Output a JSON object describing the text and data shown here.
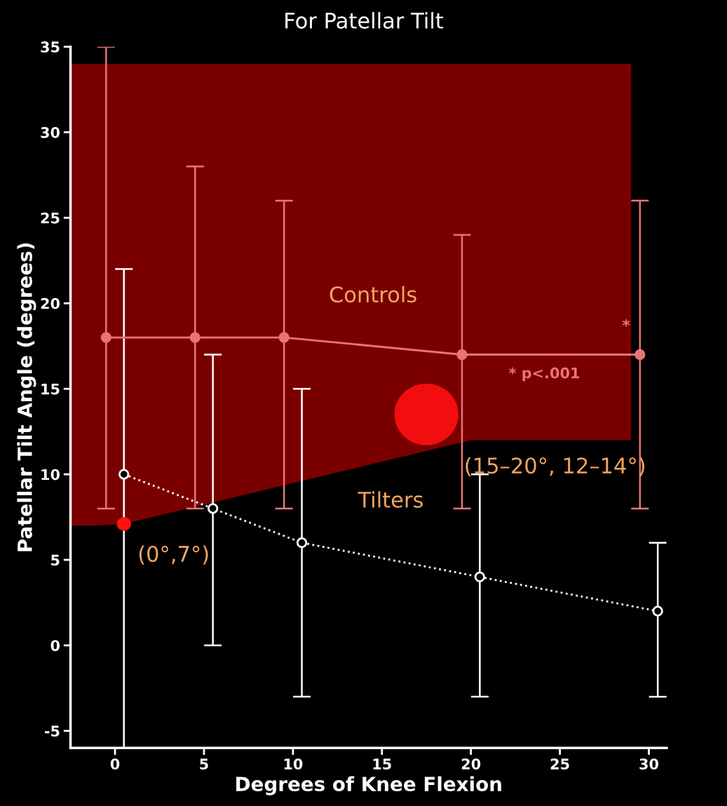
{
  "chart_data": {
    "type": "line",
    "title": "For Patellar Tilt",
    "xlabel": "Degrees of Knee Flexion",
    "ylabel": "Patellar Tilt Angle (degrees)",
    "xlim": [
      -2.5,
      31
    ],
    "xticks": [
      0,
      5,
      10,
      15,
      20,
      25,
      30
    ],
    "ylim": [
      -6,
      35
    ],
    "yticks": [
      -5,
      0,
      5,
      10,
      15,
      20,
      25,
      30,
      35
    ],
    "grid": false,
    "legend": false,
    "series": [
      {
        "name": "Controls",
        "color": "#e87575",
        "x": [
          -0.5,
          4.5,
          9.5,
          19.5,
          29.5
        ],
        "values": [
          18,
          18,
          18,
          17,
          17
        ],
        "errors": [
          [
            8,
            35
          ],
          [
            8,
            28
          ],
          [
            8,
            26
          ],
          [
            8,
            24
          ],
          [
            8,
            26
          ]
        ],
        "marker": "circle",
        "line_style": "solid"
      },
      {
        "name": "Tilters",
        "color": "#ffffff",
        "x": [
          0.5,
          5.5,
          10.5,
          20.5,
          30.5
        ],
        "values": [
          10,
          8,
          6,
          4,
          2
        ],
        "errors": [
          [
            -6,
            22
          ],
          [
            0,
            17
          ],
          [
            -3,
            15
          ],
          [
            -3,
            10
          ],
          [
            -3,
            6
          ]
        ],
        "marker": "circle",
        "line_style": "dotted"
      }
    ],
    "annotations": [
      {
        "text": "*",
        "x": 29.5,
        "y": 18.2
      },
      "* p<.001",
      {
        "text": "(0°,7°)",
        "x": 0.5,
        "y": 7.1
      },
      "(15–20°, 12–14°)"
    ]
  }
}
